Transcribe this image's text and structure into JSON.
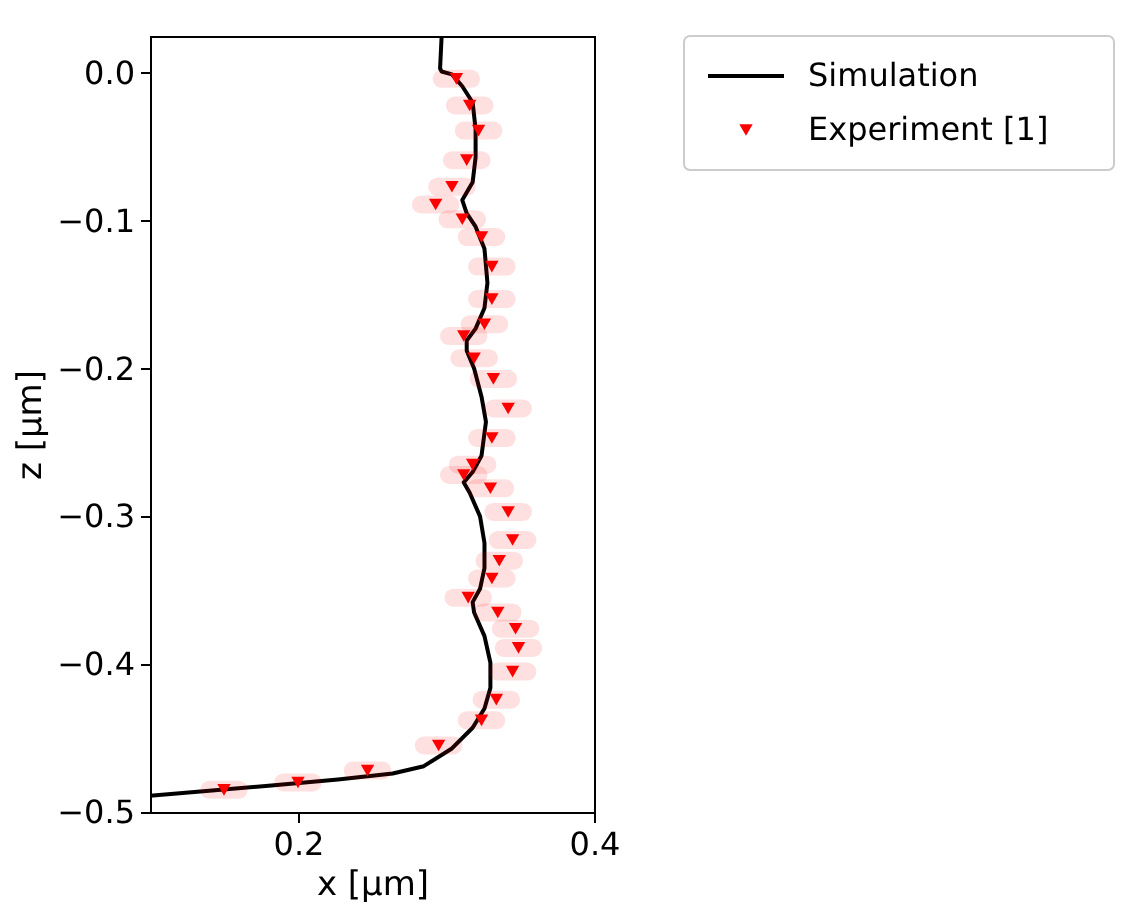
{
  "chart_data": {
    "type": "line",
    "xlabel": "x [μm]",
    "ylabel": "z [μm]",
    "xlim": [
      0.1,
      0.4
    ],
    "ylim": [
      -0.5,
      0.025
    ],
    "xticks": [
      0.2,
      0.4
    ],
    "yticks": [
      {
        "value": 0,
        "label": "0.0"
      },
      {
        "value": -0.1,
        "label": "−0.1"
      },
      {
        "value": -0.2,
        "label": "−0.2"
      },
      {
        "value": -0.3,
        "label": "−0.3"
      },
      {
        "value": -0.4,
        "label": "−0.4"
      },
      {
        "value": -0.5,
        "label": "−0.5"
      }
    ],
    "grid": false,
    "legend": "top right",
    "series": [
      {
        "name": "Simulation",
        "type": "line",
        "color": "#000000",
        "line_style": "solid",
        "marker": "none",
        "x": [
          0.297,
          0.296,
          0.297,
          0.304,
          0.311,
          0.318,
          0.32,
          0.32,
          0.318,
          0.311,
          0.314,
          0.32,
          0.326,
          0.328,
          0.326,
          0.32,
          0.314,
          0.314,
          0.319,
          0.324,
          0.327,
          0.324,
          0.318,
          0.312,
          0.316,
          0.323,
          0.326,
          0.326,
          0.323,
          0.318,
          0.319,
          0.326,
          0.33,
          0.33,
          0.326,
          0.318,
          0.304,
          0.285,
          0.264,
          0.227,
          0.182,
          0.136,
          0.1
        ],
        "values": [
          0.024,
          0.003,
          0.001,
          -0.001,
          -0.009,
          -0.02,
          -0.038,
          -0.057,
          -0.074,
          -0.086,
          -0.095,
          -0.104,
          -0.119,
          -0.142,
          -0.159,
          -0.173,
          -0.181,
          -0.188,
          -0.2,
          -0.219,
          -0.236,
          -0.259,
          -0.27,
          -0.277,
          -0.284,
          -0.3,
          -0.318,
          -0.335,
          -0.349,
          -0.358,
          -0.365,
          -0.381,
          -0.399,
          -0.416,
          -0.43,
          -0.443,
          -0.457,
          -0.469,
          -0.474,
          -0.478,
          -0.482,
          -0.486,
          -0.489
        ]
      },
      {
        "name": "Experiment [1]",
        "type": "scatter",
        "color": "#ff0000",
        "marker": "triangle",
        "x": [
          0.307,
          0.316,
          0.322,
          0.314,
          0.304,
          0.293,
          0.311,
          0.324,
          0.331,
          0.331,
          0.326,
          0.312,
          0.319,
          0.332,
          0.342,
          0.331,
          0.318,
          0.312,
          0.33,
          0.342,
          0.345,
          0.336,
          0.331,
          0.315,
          0.335,
          0.347,
          0.349,
          0.345,
          0.334,
          0.324,
          0.295,
          0.247,
          0.2,
          0.15
        ],
        "values": [
          -0.004,
          -0.022,
          -0.039,
          -0.059,
          -0.077,
          -0.089,
          -0.099,
          -0.111,
          -0.131,
          -0.153,
          -0.17,
          -0.178,
          -0.193,
          -0.207,
          -0.227,
          -0.247,
          -0.265,
          -0.272,
          -0.281,
          -0.297,
          -0.316,
          -0.33,
          -0.342,
          -0.355,
          -0.365,
          -0.376,
          -0.389,
          -0.405,
          -0.424,
          -0.438,
          -0.455,
          -0.472,
          -0.48,
          -0.485
        ],
        "xerrors": [
          0.01,
          0.01,
          0.01,
          0.01,
          0.01,
          0.01,
          0.01,
          0.01,
          0.01,
          0.01,
          0.01,
          0.01,
          0.01,
          0.01,
          0.01,
          0.01,
          0.01,
          0.01,
          0.01,
          0.01,
          0.01,
          0.01,
          0.01,
          0.01,
          0.01,
          0.01,
          0.01,
          0.01,
          0.01,
          0.01,
          0.01,
          0.01,
          0.01,
          0.01
        ]
      }
    ]
  }
}
